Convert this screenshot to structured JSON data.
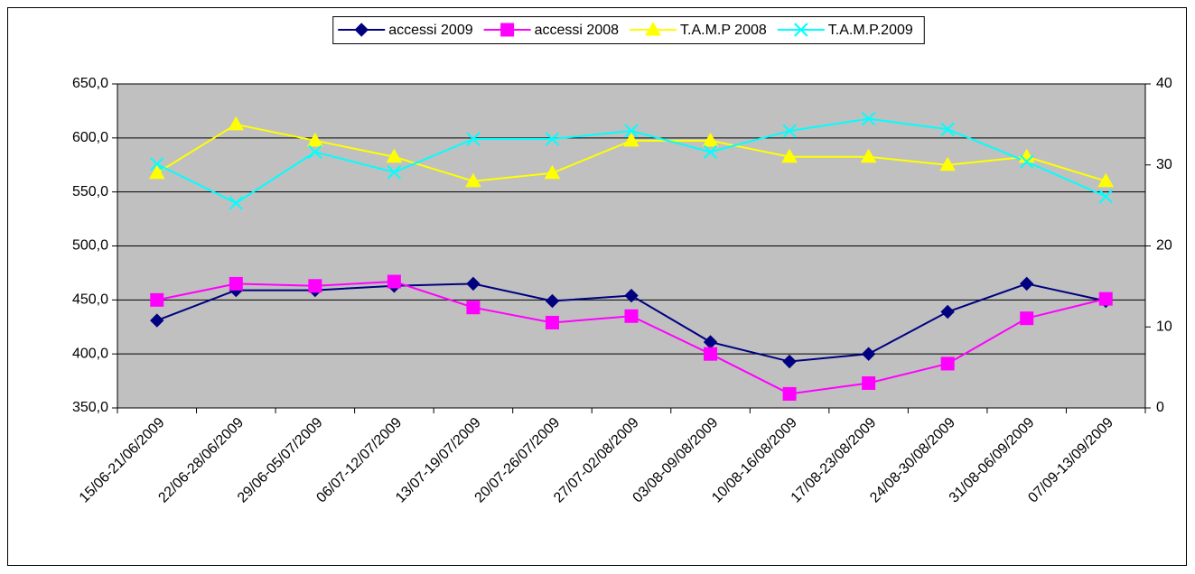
{
  "chart_data": {
    "type": "line",
    "categories": [
      "15/06-21/06/2009",
      "22/06-28/06/2009",
      "29/06-05/07/2009",
      "06/07-12/07/2009",
      "13/07-19/07/2009",
      "20/07-26/07/2009",
      "27/07-02/08/2009",
      "03/08-09/08/2009",
      "10/08-16/08/2009",
      "17/08-23/08/2009",
      "24/08-30/08/2009",
      "31/08-06/09/2009",
      "07/09-13/09/2009"
    ],
    "series": [
      {
        "name": "accessi 2009",
        "color": "#000080",
        "marker": "diamond",
        "values": [
          431,
          459,
          459,
          463,
          465,
          449,
          454,
          411,
          393,
          400,
          439,
          465,
          449
        ]
      },
      {
        "name": "accessi 2008",
        "color": "#ff00ff",
        "marker": "square",
        "values": [
          450,
          465,
          463,
          467,
          443,
          429,
          435,
          400,
          363,
          373,
          391,
          433,
          451
        ]
      },
      {
        "name": "T.A.M.P 2008",
        "color": "#ffff00",
        "marker": "triangle",
        "axis": "y2",
        "values": [
          29,
          35,
          33,
          31,
          28,
          29,
          33,
          33,
          31,
          31,
          30,
          31,
          28
        ]
      },
      {
        "name": "T.A.M.P.2009",
        "color": "#00ffff",
        "marker": "x",
        "axis": "y2",
        "values": [
          30.1,
          25.3,
          31.6,
          29.1,
          33.2,
          33.2,
          34.2,
          31.6,
          34.2,
          35.7,
          34.4,
          30.4,
          26.1
        ]
      }
    ],
    "ylim": [
      350,
      650
    ],
    "yticks": [
      {
        "value": 350,
        "label": "350,0"
      },
      {
        "value": 400,
        "label": "400,0"
      },
      {
        "value": 450,
        "label": "450,0"
      },
      {
        "value": 500,
        "label": "500,0"
      },
      {
        "value": 550,
        "label": "550,0"
      },
      {
        "value": 600,
        "label": "600,0"
      },
      {
        "value": 650,
        "label": "650,0"
      }
    ],
    "y2lim": [
      0,
      40
    ],
    "y2ticks": [
      0,
      10,
      20,
      30,
      40
    ],
    "grid": true,
    "legend": "top",
    "plot_background": "#c0c0c0"
  }
}
